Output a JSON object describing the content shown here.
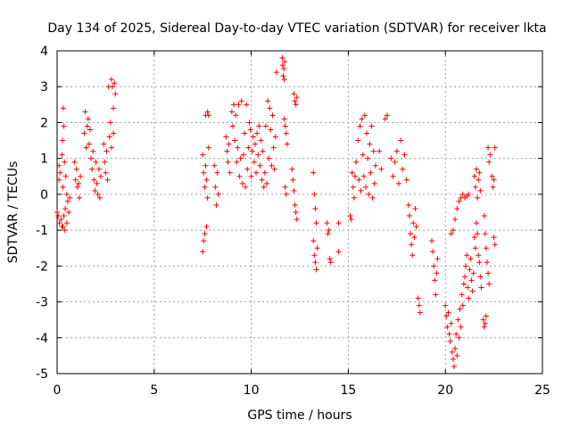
{
  "chart_data": {
    "type": "scatter",
    "title": "Day 134 of 2025, Sidereal Day-to-day VTEC variation (SDTVAR) for receiver lkta",
    "xlabel": "GPS time / hours",
    "ylabel": "SDTVAR / TECUs",
    "xlim": [
      0,
      25
    ],
    "ylim": [
      -5,
      4
    ],
    "xticks": [
      0,
      5,
      10,
      15,
      20,
      25
    ],
    "yticks": [
      -5,
      -4,
      -3,
      -2,
      -1,
      0,
      1,
      2,
      3,
      4
    ],
    "grid": true,
    "marker": "plus",
    "series": [
      {
        "name": "SDTVAR",
        "color": "#ff0000",
        "points": [
          [
            0.0,
            -0.5
          ],
          [
            0.05,
            -0.6
          ],
          [
            0.1,
            0.4
          ],
          [
            0.1,
            0.8
          ],
          [
            0.12,
            -0.8
          ],
          [
            0.15,
            0.6
          ],
          [
            0.2,
            -0.7
          ],
          [
            0.25,
            1.1
          ],
          [
            0.25,
            -0.9
          ],
          [
            0.28,
            1.5
          ],
          [
            0.3,
            -0.9
          ],
          [
            0.3,
            0.2
          ],
          [
            0.32,
            2.4
          ],
          [
            0.35,
            1.9
          ],
          [
            0.35,
            -0.6
          ],
          [
            0.38,
            0.9
          ],
          [
            0.4,
            -1.0
          ],
          [
            0.42,
            -0.4
          ],
          [
            0.45,
            0.5
          ],
          [
            0.5,
            -0.8
          ],
          [
            0.5,
            0.0
          ],
          [
            0.55,
            -0.2
          ],
          [
            0.6,
            -0.5
          ],
          [
            0.65,
            -0.1
          ],
          [
            0.9,
            0.9
          ],
          [
            0.95,
            0.4
          ],
          [
            1.0,
            0.7
          ],
          [
            1.05,
            0.2
          ],
          [
            1.1,
            0.3
          ],
          [
            1.15,
            -0.1
          ],
          [
            1.2,
            0.5
          ],
          [
            1.4,
            1.7
          ],
          [
            1.45,
            2.3
          ],
          [
            1.5,
            1.3
          ],
          [
            1.55,
            1.9
          ],
          [
            1.6,
            2.1
          ],
          [
            1.65,
            1.4
          ],
          [
            1.7,
            1.8
          ],
          [
            1.75,
            1.0
          ],
          [
            1.8,
            0.7
          ],
          [
            1.85,
            1.2
          ],
          [
            1.9,
            0.4
          ],
          [
            1.95,
            0.1
          ],
          [
            2.0,
            0.9
          ],
          [
            2.05,
            0.3
          ],
          [
            2.1,
            0.0
          ],
          [
            2.15,
            0.7
          ],
          [
            2.2,
            -0.1
          ],
          [
            2.25,
            0.5
          ],
          [
            2.4,
            1.4
          ],
          [
            2.45,
            0.9
          ],
          [
            2.5,
            0.6
          ],
          [
            2.55,
            1.2
          ],
          [
            2.6,
            0.4
          ],
          [
            2.65,
            3.0
          ],
          [
            2.7,
            1.6
          ],
          [
            2.75,
            2.0
          ],
          [
            2.8,
            3.2
          ],
          [
            2.8,
            1.3
          ],
          [
            2.85,
            3.0
          ],
          [
            2.9,
            2.4
          ],
          [
            2.9,
            1.7
          ],
          [
            2.95,
            3.1
          ],
          [
            3.0,
            2.8
          ],
          [
            7.5,
            1.1
          ],
          [
            7.5,
            -1.6
          ],
          [
            7.55,
            0.6
          ],
          [
            7.55,
            -1.3
          ],
          [
            7.6,
            0.2
          ],
          [
            7.6,
            -1.1
          ],
          [
            7.65,
            2.2
          ],
          [
            7.65,
            0.8
          ],
          [
            7.7,
            -0.9
          ],
          [
            7.7,
            0.4
          ],
          [
            7.75,
            2.3
          ],
          [
            7.75,
            -0.1
          ],
          [
            7.8,
            1.3
          ],
          [
            7.8,
            2.2
          ],
          [
            8.1,
            0.8
          ],
          [
            8.15,
            0.2
          ],
          [
            8.2,
            -0.3
          ],
          [
            8.25,
            0.6
          ],
          [
            8.3,
            0.0
          ],
          [
            8.7,
            1.6
          ],
          [
            8.75,
            1.2
          ],
          [
            8.8,
            0.9
          ],
          [
            8.85,
            1.4
          ],
          [
            8.9,
            0.6
          ],
          [
            9.0,
            2.3
          ],
          [
            9.05,
            1.9
          ],
          [
            9.1,
            2.5
          ],
          [
            9.15,
            1.5
          ],
          [
            9.2,
            2.2
          ],
          [
            9.25,
            0.9
          ],
          [
            9.3,
            1.3
          ],
          [
            9.35,
            2.5
          ],
          [
            9.4,
            0.5
          ],
          [
            9.45,
            1.0
          ],
          [
            9.5,
            2.6
          ],
          [
            9.55,
            0.3
          ],
          [
            9.6,
            1.1
          ],
          [
            9.65,
            1.7
          ],
          [
            9.7,
            0.2
          ],
          [
            9.75,
            2.5
          ],
          [
            9.8,
            0.7
          ],
          [
            9.85,
            1.3
          ],
          [
            9.9,
            2.0
          ],
          [
            9.95,
            1.8
          ],
          [
            10.0,
            0.5
          ],
          [
            10.05,
            1.2
          ],
          [
            10.1,
            1.6
          ],
          [
            10.15,
            0.9
          ],
          [
            10.2,
            1.4
          ],
          [
            10.25,
            0.6
          ],
          [
            10.3,
            1.7
          ],
          [
            10.35,
            1.1
          ],
          [
            10.4,
            1.9
          ],
          [
            10.45,
            0.8
          ],
          [
            10.5,
            1.5
          ],
          [
            10.55,
            0.4
          ],
          [
            10.6,
            1.2
          ],
          [
            10.65,
            0.2
          ],
          [
            10.7,
            0.6
          ],
          [
            10.75,
            1.9
          ],
          [
            10.8,
            0.3
          ],
          [
            10.85,
            2.6
          ],
          [
            10.9,
            1.0
          ],
          [
            10.95,
            2.4
          ],
          [
            11.0,
            1.8
          ],
          [
            11.05,
            0.8
          ],
          [
            11.1,
            2.2
          ],
          [
            11.15,
            1.3
          ],
          [
            11.2,
            0.7
          ],
          [
            11.25,
            1.6
          ],
          [
            11.3,
            3.4
          ],
          [
            11.6,
            3.8
          ],
          [
            11.62,
            3.6
          ],
          [
            11.65,
            3.3
          ],
          [
            11.68,
            3.5
          ],
          [
            11.7,
            3.2
          ],
          [
            11.72,
            3.7
          ],
          [
            11.7,
            2.1
          ],
          [
            11.75,
            1.9
          ],
          [
            11.8,
            1.7
          ],
          [
            11.85,
            1.4
          ],
          [
            11.75,
            0.2
          ],
          [
            11.8,
            0.0
          ],
          [
            12.1,
            0.7
          ],
          [
            12.15,
            0.4
          ],
          [
            12.2,
            0.1
          ],
          [
            12.25,
            -0.3
          ],
          [
            12.3,
            -0.5
          ],
          [
            12.35,
            -0.7
          ],
          [
            12.2,
            2.8
          ],
          [
            12.25,
            2.6
          ],
          [
            12.3,
            2.5
          ],
          [
            12.35,
            2.7
          ],
          [
            13.2,
            0.6
          ],
          [
            13.25,
            0.0
          ],
          [
            13.3,
            -0.4
          ],
          [
            13.35,
            -0.8
          ],
          [
            13.2,
            -1.3
          ],
          [
            13.25,
            -1.7
          ],
          [
            13.3,
            -1.9
          ],
          [
            13.35,
            -2.1
          ],
          [
            13.4,
            -1.5
          ],
          [
            13.9,
            -0.8
          ],
          [
            13.95,
            -1.1
          ],
          [
            14.0,
            -1.0
          ],
          [
            14.05,
            -1.8
          ],
          [
            14.1,
            -1.9
          ],
          [
            14.5,
            -0.8
          ],
          [
            14.5,
            -1.6
          ],
          [
            15.1,
            -0.6
          ],
          [
            15.15,
            -0.7
          ],
          [
            15.2,
            0.6
          ],
          [
            15.25,
            0.2
          ],
          [
            15.3,
            -0.1
          ],
          [
            15.35,
            0.5
          ],
          [
            15.4,
            0.9
          ],
          [
            15.5,
            1.5
          ],
          [
            15.55,
            0.4
          ],
          [
            15.6,
            1.9
          ],
          [
            15.65,
            0.1
          ],
          [
            15.7,
            2.1
          ],
          [
            15.75,
            1.1
          ],
          [
            15.8,
            0.5
          ],
          [
            15.85,
            2.2
          ],
          [
            15.9,
            0.2
          ],
          [
            15.95,
            1.7
          ],
          [
            16.0,
            1.0
          ],
          [
            16.05,
            0.0
          ],
          [
            16.1,
            1.4
          ],
          [
            16.15,
            0.6
          ],
          [
            16.2,
            1.9
          ],
          [
            16.25,
            -0.1
          ],
          [
            16.3,
            1.2
          ],
          [
            16.35,
            0.3
          ],
          [
            16.4,
            0.8
          ],
          [
            16.6,
            1.2
          ],
          [
            16.7,
            0.7
          ],
          [
            16.9,
            2.1
          ],
          [
            17.0,
            2.2
          ],
          [
            17.2,
            1.0
          ],
          [
            17.3,
            0.5
          ],
          [
            17.4,
            0.9
          ],
          [
            17.5,
            1.2
          ],
          [
            17.6,
            0.3
          ],
          [
            17.7,
            1.5
          ],
          [
            17.8,
            0.7
          ],
          [
            17.9,
            1.1
          ],
          [
            18.0,
            0.4
          ],
          [
            18.1,
            -0.3
          ],
          [
            18.15,
            -0.6
          ],
          [
            18.2,
            -1.1
          ],
          [
            18.25,
            -1.4
          ],
          [
            18.3,
            -1.7
          ],
          [
            18.35,
            -0.8
          ],
          [
            18.4,
            -1.2
          ],
          [
            18.45,
            -0.4
          ],
          [
            18.5,
            -0.9
          ],
          [
            18.6,
            -2.9
          ],
          [
            18.65,
            -3.1
          ],
          [
            18.7,
            -3.3
          ],
          [
            19.3,
            -1.3
          ],
          [
            19.35,
            -1.6
          ],
          [
            19.4,
            -2.0
          ],
          [
            19.45,
            -2.4
          ],
          [
            19.5,
            -2.8
          ],
          [
            19.55,
            -2.2
          ],
          [
            19.6,
            -1.8
          ],
          [
            20.0,
            -3.1
          ],
          [
            20.05,
            -3.4
          ],
          [
            20.1,
            -3.7
          ],
          [
            20.15,
            -3.3
          ],
          [
            20.2,
            -3.9
          ],
          [
            20.25,
            -4.1
          ],
          [
            20.3,
            -3.6
          ],
          [
            20.35,
            -4.4
          ],
          [
            20.4,
            -4.6
          ],
          [
            20.45,
            -4.8
          ],
          [
            20.5,
            -4.3
          ],
          [
            20.55,
            -3.9
          ],
          [
            20.6,
            -4.5
          ],
          [
            20.65,
            -3.5
          ],
          [
            20.7,
            -4.0
          ],
          [
            20.75,
            -3.2
          ],
          [
            20.8,
            -3.7
          ],
          [
            20.85,
            -2.8
          ],
          [
            20.9,
            -3.1
          ],
          [
            20.95,
            -2.5
          ],
          [
            20.3,
            -1.1
          ],
          [
            20.4,
            -1.0
          ],
          [
            20.5,
            -0.7
          ],
          [
            20.6,
            -0.4
          ],
          [
            20.7,
            -0.2
          ],
          [
            20.8,
            -0.1
          ],
          [
            20.9,
            0.0
          ],
          [
            21.0,
            -0.1
          ],
          [
            21.1,
            -0.05
          ],
          [
            21.2,
            0.0
          ],
          [
            21.0,
            -2.3
          ],
          [
            21.05,
            -2.0
          ],
          [
            21.1,
            -1.7
          ],
          [
            21.15,
            -2.6
          ],
          [
            21.2,
            -2.9
          ],
          [
            21.25,
            -2.1
          ],
          [
            21.3,
            -1.8
          ],
          [
            21.35,
            -2.4
          ],
          [
            21.4,
            -2.7
          ],
          [
            21.45,
            -2.2
          ],
          [
            21.5,
            -1.2
          ],
          [
            21.55,
            -1.5
          ],
          [
            21.6,
            -0.8
          ],
          [
            21.65,
            -1.1
          ],
          [
            21.7,
            -1.7
          ],
          [
            21.75,
            -1.9
          ],
          [
            21.8,
            -2.3
          ],
          [
            21.85,
            -2.6
          ],
          [
            21.5,
            0.5
          ],
          [
            21.55,
            0.2
          ],
          [
            21.6,
            0.7
          ],
          [
            21.65,
            -0.1
          ],
          [
            21.7,
            0.4
          ],
          [
            21.75,
            0.6
          ],
          [
            21.8,
            0.1
          ],
          [
            22.0,
            -0.6
          ],
          [
            22.05,
            -1.1
          ],
          [
            22.1,
            -1.5
          ],
          [
            22.15,
            -1.9
          ],
          [
            22.2,
            -2.2
          ],
          [
            22.25,
            -2.5
          ],
          [
            21.95,
            -3.5
          ],
          [
            22.0,
            -3.7
          ],
          [
            22.05,
            -3.6
          ],
          [
            22.1,
            -3.4
          ],
          [
            22.2,
            1.3
          ],
          [
            22.25,
            0.9
          ],
          [
            22.3,
            1.1
          ],
          [
            22.4,
            0.5
          ],
          [
            22.45,
            0.2
          ],
          [
            22.5,
            0.4
          ],
          [
            22.55,
            1.3
          ],
          [
            22.5,
            -1.2
          ],
          [
            22.55,
            -1.4
          ]
        ]
      }
    ]
  }
}
